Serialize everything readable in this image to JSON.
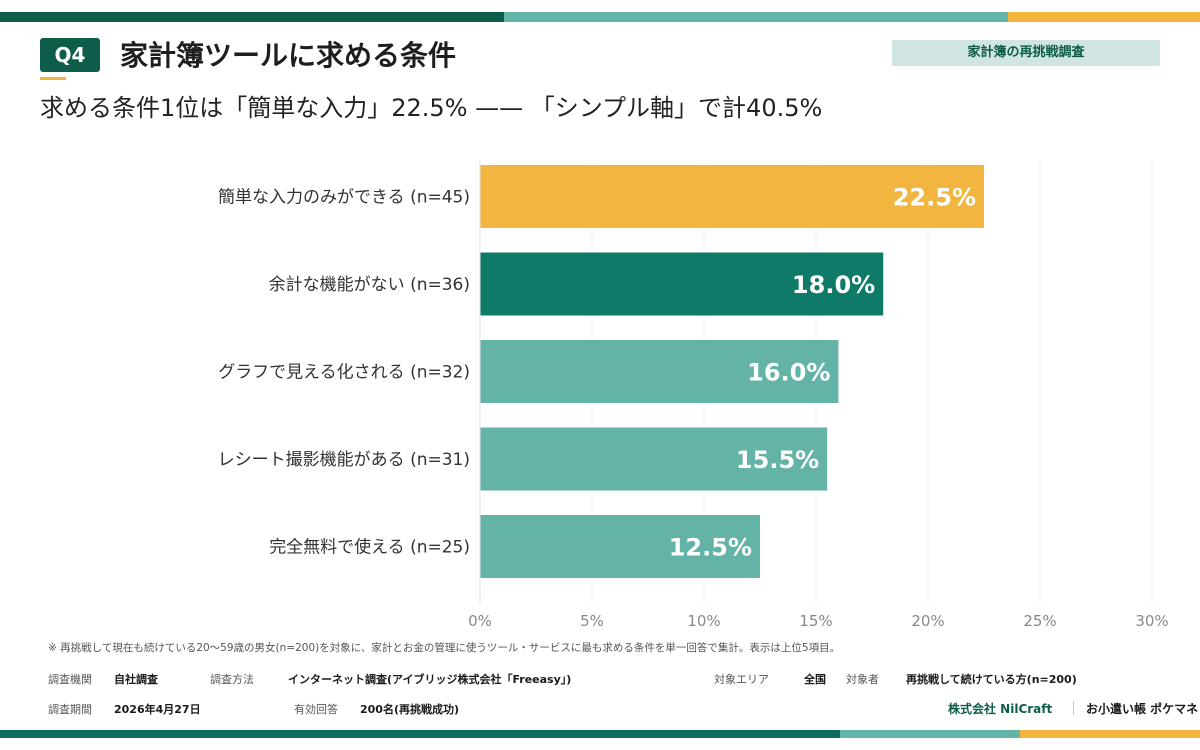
{
  "header": {
    "badge": "Q4",
    "title": "家計簿ツールに求める条件",
    "tag": "家計簿の再挑戦調査",
    "subtitle": "求める条件1位は「簡単な入力」22.5% —— 「シンプル軸」で計40.5%"
  },
  "colors": {
    "dark_green": "#0e5c4a",
    "bar_gold": "#f2b640",
    "bar_dark_teal": "#0f7a68",
    "bar_teal": "#63b3a6"
  },
  "chart_data": {
    "type": "bar",
    "orientation": "horizontal",
    "categories": [
      "簡単な入力のみができる (n=45)",
      "余計な機能がない (n=36)",
      "グラフで見える化される (n=32)",
      "レシート撮影機能がある (n=31)",
      "完全無料で使える (n=25)"
    ],
    "values": [
      22.5,
      18.0,
      16.0,
      15.5,
      12.5
    ],
    "value_labels": [
      "22.5%",
      "18.0%",
      "16.0%",
      "15.5%",
      "12.5%"
    ],
    "bar_colors": [
      "#f2b640",
      "#0f7a68",
      "#63b3a6",
      "#63b3a6",
      "#63b3a6"
    ],
    "xlim": [
      0,
      30
    ],
    "ticks": [
      0,
      5,
      10,
      15,
      20,
      25,
      30
    ],
    "tick_labels": [
      "0%",
      "5%",
      "10%",
      "15%",
      "20%",
      "25%",
      "30%"
    ],
    "grid": true
  },
  "footer": {
    "note": "※ 再挑戦して現在も続けている20〜59歳の男女(n=200)を対象に、家計とお金の管理に使うツール・サービスに最も求める条件を単一回答で集計。表示は上位5項目。",
    "org_label": "調査機関",
    "org_value": "自社調査",
    "method_label": "調査方法",
    "method_value": "インターネット調査(アイブリッジ株式会社「Freeasy」)",
    "area_label": "対象エリア",
    "area_value": "全国",
    "target_label": "対象者",
    "target_value": "再挑戦して続けている方(n=200)",
    "period_label": "調査期間",
    "period_value": "2026年4月27日",
    "valid_label": "有効回答",
    "valid_value": "200名(再挑戦成功)",
    "company": "株式会社 NilCraft",
    "brand": "お小遣い帳 ポケマネ"
  }
}
